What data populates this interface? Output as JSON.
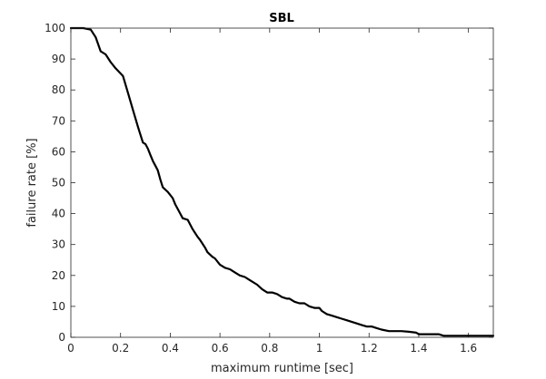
{
  "chart_data": {
    "type": "line",
    "title": "SBL",
    "xlabel": "maximum runtime [sec]",
    "ylabel": "failure rate [%]",
    "xlim": [
      0,
      1.7
    ],
    "ylim": [
      0,
      100
    ],
    "xticks": [
      0,
      0.2,
      0.4,
      0.6,
      0.8,
      1,
      1.2,
      1.4,
      1.6
    ],
    "xtick_labels": [
      "0",
      "0.2",
      "0.4",
      "0.6",
      "0.8",
      "1",
      "1.2",
      "1.4",
      "1.6"
    ],
    "yticks": [
      0,
      10,
      20,
      30,
      40,
      50,
      60,
      70,
      80,
      90,
      100
    ],
    "ytick_labels": [
      "0",
      "10",
      "20",
      "30",
      "40",
      "50",
      "60",
      "70",
      "80",
      "90",
      "100"
    ],
    "grid": false,
    "legend": "none",
    "line_color": "#000000",
    "series": [
      {
        "x": [
          0.0,
          0.02,
          0.05,
          0.08,
          0.1,
          0.12,
          0.14,
          0.16,
          0.18,
          0.21,
          0.23,
          0.25,
          0.27,
          0.29,
          0.3,
          0.31,
          0.32,
          0.33,
          0.34,
          0.35,
          0.36,
          0.37,
          0.39,
          0.41,
          0.42,
          0.44,
          0.45,
          0.47,
          0.49,
          0.51,
          0.52,
          0.54,
          0.55,
          0.57,
          0.58,
          0.6,
          0.62,
          0.64,
          0.66,
          0.68,
          0.7,
          0.72,
          0.75,
          0.77,
          0.79,
          0.81,
          0.83,
          0.85,
          0.87,
          0.88,
          0.9,
          0.92,
          0.94,
          0.96,
          0.98,
          1.0,
          1.01,
          1.03,
          1.05,
          1.07,
          1.09,
          1.11,
          1.13,
          1.15,
          1.17,
          1.19,
          1.21,
          1.23,
          1.25,
          1.28,
          1.31,
          1.33,
          1.36,
          1.39,
          1.4,
          1.42,
          1.45,
          1.48,
          1.5,
          1.52,
          1.55,
          1.58,
          1.61,
          1.65,
          1.7
        ],
        "y": [
          100,
          100,
          100,
          99.5,
          97,
          92.5,
          91.5,
          89,
          87,
          84.5,
          79,
          73.5,
          68,
          63,
          62.5,
          61,
          59,
          57,
          55.5,
          54,
          51,
          48.5,
          47,
          45,
          43,
          40,
          38.5,
          38,
          35,
          32.5,
          31.5,
          29,
          27.5,
          26,
          25.5,
          23.5,
          22.5,
          22,
          21,
          20,
          19.5,
          18.5,
          17,
          15.5,
          14.5,
          14.5,
          14,
          13,
          12.5,
          12.5,
          11.5,
          11,
          11,
          10,
          9.5,
          9.5,
          8.5,
          7.5,
          7,
          6.5,
          6,
          5.5,
          5,
          4.5,
          4,
          3.5,
          3.5,
          3,
          2.5,
          2,
          2,
          2,
          1.8,
          1.5,
          1,
          1,
          1,
          1,
          0.5,
          0.5,
          0.5,
          0.5,
          0.5,
          0.5,
          0.5
        ]
      }
    ]
  }
}
